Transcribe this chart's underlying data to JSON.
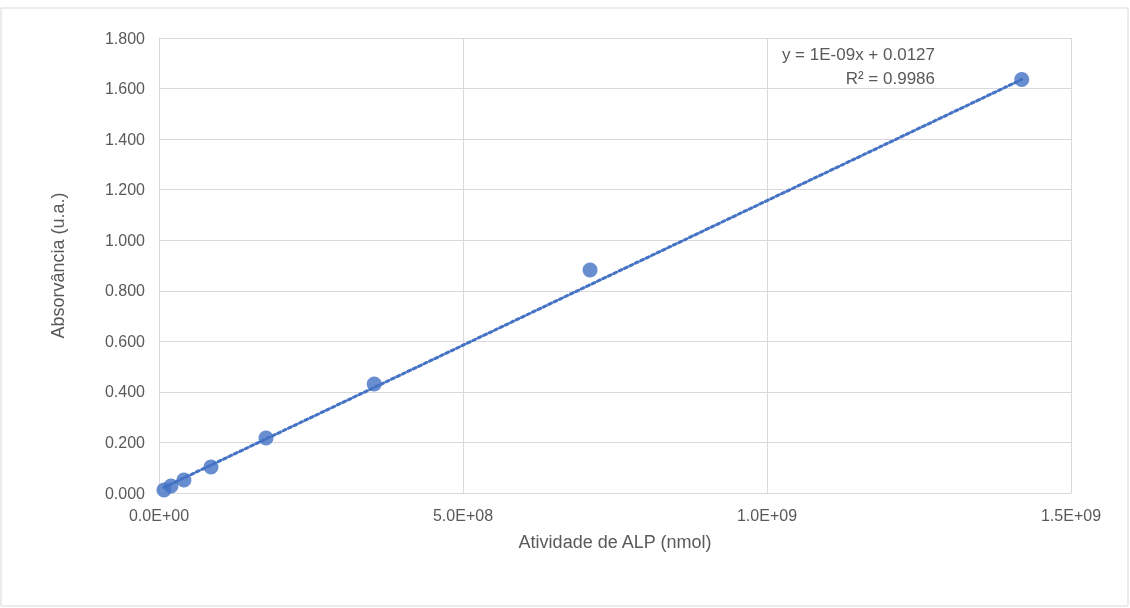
{
  "chart_data": {
    "type": "scatter",
    "xlabel": "Atividade de ALP (nmol)",
    "ylabel": "Absorvância (u.a.)",
    "series": [
      {
        "color": "#4472c4",
        "marker": "circle",
        "x": [
          8200000,
          19700000,
          41000000,
          85500000,
          176000000,
          354000000,
          709000000,
          1419000000
        ],
        "values": [
          0.012,
          0.028,
          0.051,
          0.103,
          0.218,
          0.431,
          0.882,
          1.636
        ]
      },
      {
        "type": "line",
        "color": "#4472c4",
        "line_style": "dotted",
        "marker": "none",
        "x": [
          8200000,
          1419000000
        ],
        "values": [
          0.022,
          1.636
        ]
      }
    ],
    "xlim": [
      0,
      1500000000
    ],
    "xticks": [
      {
        "value": 0,
        "label": "0.0E+00"
      },
      {
        "value": 500000000,
        "label": "5.0E+08"
      },
      {
        "value": 1000000000,
        "label": "1.0E+09"
      },
      {
        "value": 1500000000,
        "label": "1.5E+09"
      }
    ],
    "ylim": [
      0,
      1.8
    ],
    "yticks": [
      {
        "value": 0,
        "label": "0.000"
      },
      {
        "value": 0.2,
        "label": "0.200"
      },
      {
        "value": 0.4,
        "label": "0.400"
      },
      {
        "value": 0.6,
        "label": "0.600"
      },
      {
        "value": 0.8,
        "label": "0.800"
      },
      {
        "value": 1,
        "label": "1.000"
      },
      {
        "value": 1.2,
        "label": "1.200"
      },
      {
        "value": 1.4,
        "label": "1.400"
      },
      {
        "value": 1.6,
        "label": "1.600"
      },
      {
        "value": 1.8,
        "label": "1.800"
      }
    ],
    "grid": true,
    "annotations": [
      "y = 1E-09x + 0.0127",
      "R² = 0.9986"
    ]
  }
}
